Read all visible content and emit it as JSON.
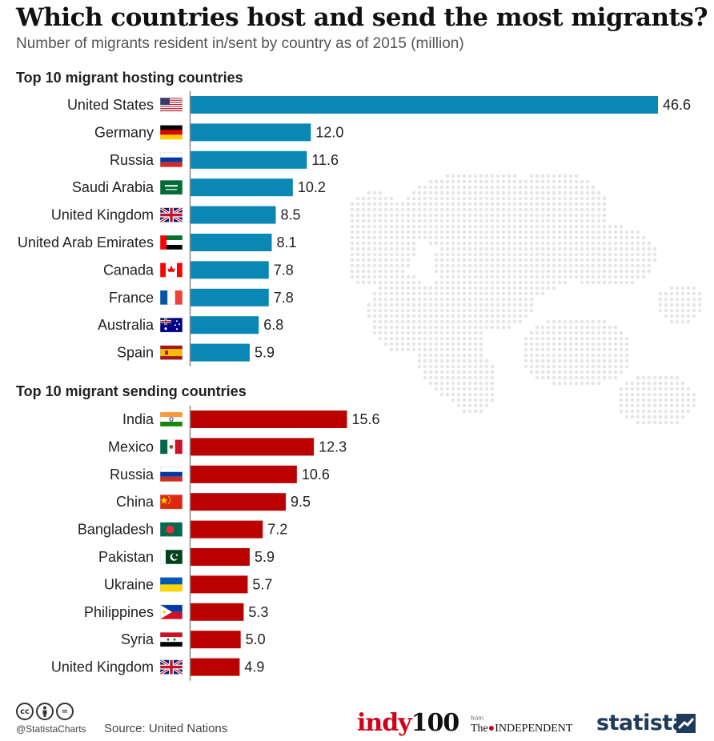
{
  "header": {
    "title": "Which countries host and send the most migrants?",
    "subtitle": "Number of migrants resident in/sent by country as of 2015 (million)"
  },
  "colors": {
    "hosting_bar": "#0b87b5",
    "sending_bar": "#bb0000",
    "map_dots": "#e6e6e6",
    "axis": "#888888"
  },
  "chart_data": [
    {
      "type": "bar",
      "orientation": "horizontal",
      "title": "Top 10 migrant hosting countries",
      "categories": [
        "United States",
        "Germany",
        "Russia",
        "Saudi Arabia",
        "United Kingdom",
        "United Arab Emirates",
        "Canada",
        "France",
        "Australia",
        "Spain"
      ],
      "flags": [
        "us-flag-icon",
        "germany-flag-icon",
        "russia-flag-icon",
        "saudi-arabia-flag-icon",
        "uk-flag-icon",
        "uae-flag-icon",
        "canada-flag-icon",
        "france-flag-icon",
        "australia-flag-icon",
        "spain-flag-icon"
      ],
      "values": [
        46.6,
        12.0,
        11.6,
        10.2,
        8.5,
        8.1,
        7.8,
        7.8,
        6.8,
        5.9
      ],
      "value_labels": [
        "46.6",
        "12.0",
        "11.6",
        "10.2",
        "8.5",
        "8.1",
        "7.8",
        "7.8",
        "6.8",
        "5.9"
      ],
      "xlim": [
        0,
        46.6
      ]
    },
    {
      "type": "bar",
      "orientation": "horizontal",
      "title": "Top 10 migrant sending countries",
      "categories": [
        "India",
        "Mexico",
        "Russia",
        "China",
        "Bangladesh",
        "Pakistan",
        "Ukraine",
        "Philippines",
        "Syria",
        "United Kingdom"
      ],
      "flags": [
        "india-flag-icon",
        "mexico-flag-icon",
        "russia-flag-icon",
        "china-flag-icon",
        "bangladesh-flag-icon",
        "pakistan-flag-icon",
        "ukraine-flag-icon",
        "philippines-flag-icon",
        "syria-flag-icon",
        "uk-flag-icon"
      ],
      "values": [
        15.6,
        12.3,
        10.6,
        9.5,
        7.2,
        5.9,
        5.7,
        5.3,
        5.0,
        4.9
      ],
      "value_labels": [
        "15.6",
        "12.3",
        "10.6",
        "9.5",
        "7.2",
        "5.9",
        "5.7",
        "5.3",
        "5.0",
        "4.9"
      ],
      "xlim": [
        0,
        46.6
      ]
    }
  ],
  "footer": {
    "cc_icons": [
      "cc",
      "by",
      "="
    ],
    "handle": "@StatistaCharts",
    "source": "Source: United Nations",
    "indy_text": "indy",
    "indy_num": "100",
    "from_text": "from",
    "independent_the": "The",
    "independent_name": "INDEPENDENT",
    "statista": "statista"
  }
}
